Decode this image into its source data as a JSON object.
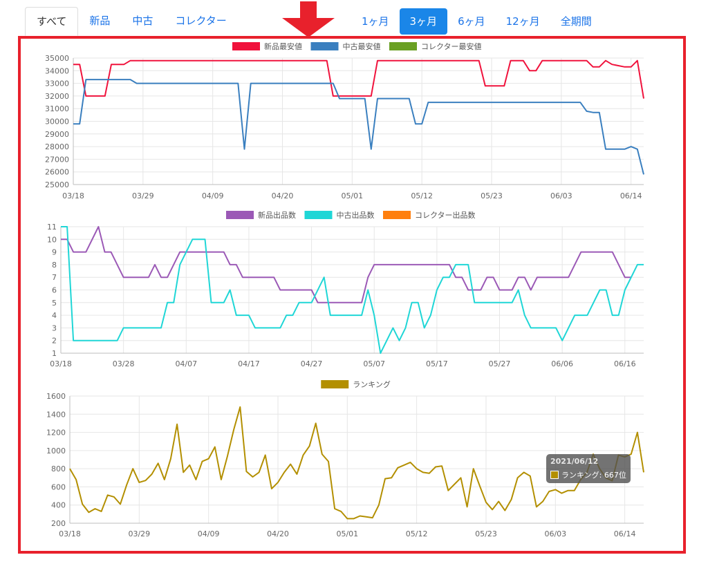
{
  "nav": {
    "condition_tabs": [
      {
        "label": "すべて",
        "active": true
      },
      {
        "label": "新品",
        "active": false
      },
      {
        "label": "中古",
        "active": false
      },
      {
        "label": "コレクター",
        "active": false
      }
    ],
    "range_tabs": [
      {
        "label": "1ヶ月",
        "active": false
      },
      {
        "label": "3ヶ月",
        "active": true
      },
      {
        "label": "6ヶ月",
        "active": false
      },
      {
        "label": "12ヶ月",
        "active": false
      },
      {
        "label": "全期間",
        "active": false
      }
    ]
  },
  "colors": {
    "highlight_frame": "#e8212c",
    "arrow": "#e8212c",
    "active_tab": "#1a86e8",
    "link": "#1a73e8"
  },
  "tooltip": {
    "date": "2021/06/12",
    "text": "ランキング: 667位"
  },
  "chart_data": [
    {
      "type": "line",
      "x_start": "03/18",
      "x_ticks": [
        "03/18",
        "03/29",
        "04/09",
        "04/20",
        "05/01",
        "05/12",
        "05/23",
        "06/03",
        "06/14"
      ],
      "ylim": [
        25000,
        35000
      ],
      "y_ticks": [
        25000,
        26000,
        27000,
        28000,
        29000,
        30000,
        31000,
        32000,
        33000,
        34000,
        35000
      ],
      "grid": true,
      "legend_position": "top",
      "series": [
        {
          "name": "新品最安値",
          "color": "#f0123c",
          "points": [
            [
              0,
              34500
            ],
            [
              1,
              34500
            ],
            [
              2,
              32000
            ],
            [
              5,
              32000
            ],
            [
              6,
              34500
            ],
            [
              8,
              34500
            ],
            [
              9,
              34800
            ],
            [
              40,
              34800
            ],
            [
              41,
              32000
            ],
            [
              47,
              32000
            ],
            [
              48,
              34800
            ],
            [
              64,
              34800
            ],
            [
              65,
              32800
            ],
            [
              68,
              32800
            ],
            [
              69,
              34800
            ],
            [
              71,
              34800
            ],
            [
              72,
              34000
            ],
            [
              73,
              34000
            ],
            [
              74,
              34800
            ],
            [
              81,
              34800
            ],
            [
              82,
              34300
            ],
            [
              83,
              34300
            ],
            [
              84,
              34800
            ],
            [
              85,
              34500
            ],
            [
              86,
              34400
            ],
            [
              87,
              34300
            ],
            [
              88,
              34300
            ],
            [
              89,
              34800
            ],
            [
              90,
              31800
            ]
          ]
        },
        {
          "name": "中古最安値",
          "color": "#3a7fbf",
          "points": [
            [
              0,
              29800
            ],
            [
              1,
              29800
            ],
            [
              2,
              33300
            ],
            [
              9,
              33300
            ],
            [
              10,
              33000
            ],
            [
              26,
              33000
            ],
            [
              27,
              27800
            ],
            [
              28,
              33000
            ],
            [
              41,
              33000
            ],
            [
              42,
              31800
            ],
            [
              46,
              31800
            ],
            [
              47,
              27800
            ],
            [
              48,
              31800
            ],
            [
              53,
              31800
            ],
            [
              54,
              29800
            ],
            [
              55,
              29800
            ],
            [
              56,
              31500
            ],
            [
              80,
              31500
            ],
            [
              81,
              30800
            ],
            [
              82,
              30700
            ],
            [
              83,
              30700
            ],
            [
              84,
              27800
            ],
            [
              87,
              27800
            ],
            [
              88,
              28000
            ],
            [
              89,
              27800
            ],
            [
              90,
              25800
            ]
          ]
        },
        {
          "name": "コレクター最安値",
          "color": "#6aa023",
          "points": []
        }
      ]
    },
    {
      "type": "line",
      "x_start": "03/18",
      "x_ticks": [
        "03/18",
        "03/28",
        "04/07",
        "04/17",
        "04/27",
        "05/07",
        "05/17",
        "05/27",
        "06/06",
        "06/16"
      ],
      "ylim": [
        1,
        11
      ],
      "y_ticks": [
        1,
        2,
        3,
        4,
        5,
        6,
        7,
        8,
        9,
        10,
        11
      ],
      "grid": true,
      "legend_position": "top",
      "series": [
        {
          "name": "新品出品数",
          "color": "#9b59b6",
          "points": [
            [
              0,
              10
            ],
            [
              1,
              10
            ],
            [
              2,
              9
            ],
            [
              4,
              9
            ],
            [
              6,
              11
            ],
            [
              7,
              9
            ],
            [
              8,
              9
            ],
            [
              10,
              7
            ],
            [
              14,
              7
            ],
            [
              15,
              8
            ],
            [
              16,
              7
            ],
            [
              17,
              7
            ],
            [
              19,
              9
            ],
            [
              26,
              9
            ],
            [
              27,
              8
            ],
            [
              28,
              8
            ],
            [
              29,
              7
            ],
            [
              34,
              7
            ],
            [
              35,
              6
            ],
            [
              40,
              6
            ],
            [
              41,
              5
            ],
            [
              48,
              5
            ],
            [
              49,
              7
            ],
            [
              50,
              8
            ],
            [
              62,
              8
            ],
            [
              63,
              7
            ],
            [
              64,
              7
            ],
            [
              65,
              6
            ],
            [
              67,
              6
            ],
            [
              68,
              7
            ],
            [
              69,
              7
            ],
            [
              70,
              6
            ],
            [
              72,
              6
            ],
            [
              73,
              7
            ],
            [
              74,
              7
            ],
            [
              75,
              6
            ],
            [
              76,
              7
            ],
            [
              81,
              7
            ],
            [
              83,
              9
            ],
            [
              88,
              9
            ],
            [
              90,
              7
            ],
            [
              91,
              7
            ]
          ]
        },
        {
          "name": "中古出品数",
          "color": "#1fd6d6",
          "points": [
            [
              0,
              11
            ],
            [
              1,
              11
            ],
            [
              2,
              2
            ],
            [
              9,
              2
            ],
            [
              10,
              3
            ],
            [
              16,
              3
            ],
            [
              17,
              5
            ],
            [
              18,
              5
            ],
            [
              19,
              8
            ],
            [
              21,
              10
            ],
            [
              23,
              10
            ],
            [
              24,
              5
            ],
            [
              26,
              5
            ],
            [
              27,
              6
            ],
            [
              28,
              4
            ],
            [
              30,
              4
            ],
            [
              31,
              3
            ],
            [
              35,
              3
            ],
            [
              36,
              4
            ],
            [
              37,
              4
            ],
            [
              38,
              5
            ],
            [
              40,
              5
            ],
            [
              42,
              7
            ],
            [
              43,
              4
            ],
            [
              48,
              4
            ],
            [
              49,
              6
            ],
            [
              50,
              4
            ],
            [
              51,
              1
            ],
            [
              53,
              3
            ],
            [
              54,
              2
            ],
            [
              55,
              3
            ],
            [
              56,
              5
            ],
            [
              57,
              5
            ],
            [
              58,
              3
            ],
            [
              59,
              4
            ],
            [
              60,
              6
            ],
            [
              61,
              7
            ],
            [
              62,
              7
            ],
            [
              63,
              8
            ],
            [
              65,
              8
            ],
            [
              66,
              5
            ],
            [
              72,
              5
            ],
            [
              73,
              6
            ],
            [
              74,
              4
            ],
            [
              75,
              3
            ],
            [
              79,
              3
            ],
            [
              80,
              2
            ],
            [
              81,
              3
            ],
            [
              82,
              4
            ],
            [
              84,
              4
            ],
            [
              86,
              6
            ],
            [
              87,
              6
            ],
            [
              88,
              4
            ],
            [
              89,
              4
            ],
            [
              90,
              6
            ],
            [
              92,
              8
            ],
            [
              93,
              8
            ]
          ]
        },
        {
          "name": "コレクター出品数",
          "color": "#ff7f0e",
          "points": []
        }
      ]
    },
    {
      "type": "line",
      "x_start": "03/18",
      "x_ticks": [
        "03/18",
        "03/29",
        "04/09",
        "04/20",
        "05/01",
        "05/12",
        "05/23",
        "06/03",
        "06/14"
      ],
      "ylim": [
        200,
        1600
      ],
      "y_ticks": [
        200,
        400,
        600,
        800,
        1000,
        1200,
        1400,
        1600
      ],
      "grid": true,
      "legend_position": "top",
      "series": [
        {
          "name": "ランキング",
          "color": "#b38f00",
          "points": [
            [
              0,
              800
            ],
            [
              1,
              680
            ],
            [
              2,
              410
            ],
            [
              3,
              320
            ],
            [
              4,
              360
            ],
            [
              5,
              330
            ],
            [
              6,
              510
            ],
            [
              7,
              490
            ],
            [
              8,
              410
            ],
            [
              9,
              620
            ],
            [
              10,
              800
            ],
            [
              11,
              650
            ],
            [
              12,
              670
            ],
            [
              13,
              740
            ],
            [
              14,
              860
            ],
            [
              15,
              680
            ],
            [
              16,
              910
            ],
            [
              17,
              1290
            ],
            [
              18,
              760
            ],
            [
              19,
              840
            ],
            [
              20,
              680
            ],
            [
              21,
              880
            ],
            [
              22,
              910
            ],
            [
              23,
              1040
            ],
            [
              24,
              680
            ],
            [
              25,
              940
            ],
            [
              26,
              1230
            ],
            [
              27,
              1480
            ],
            [
              28,
              770
            ],
            [
              29,
              710
            ],
            [
              30,
              760
            ],
            [
              31,
              950
            ],
            [
              32,
              580
            ],
            [
              33,
              650
            ],
            [
              34,
              760
            ],
            [
              35,
              850
            ],
            [
              36,
              740
            ],
            [
              37,
              950
            ],
            [
              38,
              1050
            ],
            [
              39,
              1300
            ],
            [
              40,
              960
            ],
            [
              41,
              880
            ],
            [
              42,
              360
            ],
            [
              43,
              330
            ],
            [
              44,
              250
            ],
            [
              45,
              250
            ],
            [
              46,
              280
            ],
            [
              47,
              270
            ],
            [
              48,
              260
            ],
            [
              49,
              400
            ],
            [
              50,
              690
            ],
            [
              51,
              700
            ],
            [
              52,
              810
            ],
            [
              53,
              840
            ],
            [
              54,
              870
            ],
            [
              55,
              800
            ],
            [
              56,
              760
            ],
            [
              57,
              750
            ],
            [
              58,
              820
            ],
            [
              59,
              830
            ],
            [
              60,
              560
            ],
            [
              61,
              630
            ],
            [
              62,
              700
            ],
            [
              63,
              380
            ],
            [
              64,
              800
            ],
            [
              65,
              610
            ],
            [
              66,
              430
            ],
            [
              67,
              350
            ],
            [
              68,
              440
            ],
            [
              69,
              340
            ],
            [
              70,
              460
            ],
            [
              71,
              700
            ],
            [
              72,
              760
            ],
            [
              73,
              720
            ],
            [
              74,
              380
            ],
            [
              75,
              440
            ],
            [
              76,
              550
            ],
            [
              77,
              570
            ],
            [
              78,
              530
            ],
            [
              79,
              560
            ],
            [
              80,
              560
            ],
            [
              81,
              680
            ],
            [
              82,
              760
            ],
            [
              83,
              960
            ],
            [
              84,
              800
            ],
            [
              85,
              700
            ],
            [
              86,
              667
            ],
            [
              87,
              950
            ],
            [
              88,
              930
            ],
            [
              89,
              960
            ],
            [
              90,
              1200
            ],
            [
              91,
              760
            ]
          ]
        }
      ]
    }
  ]
}
